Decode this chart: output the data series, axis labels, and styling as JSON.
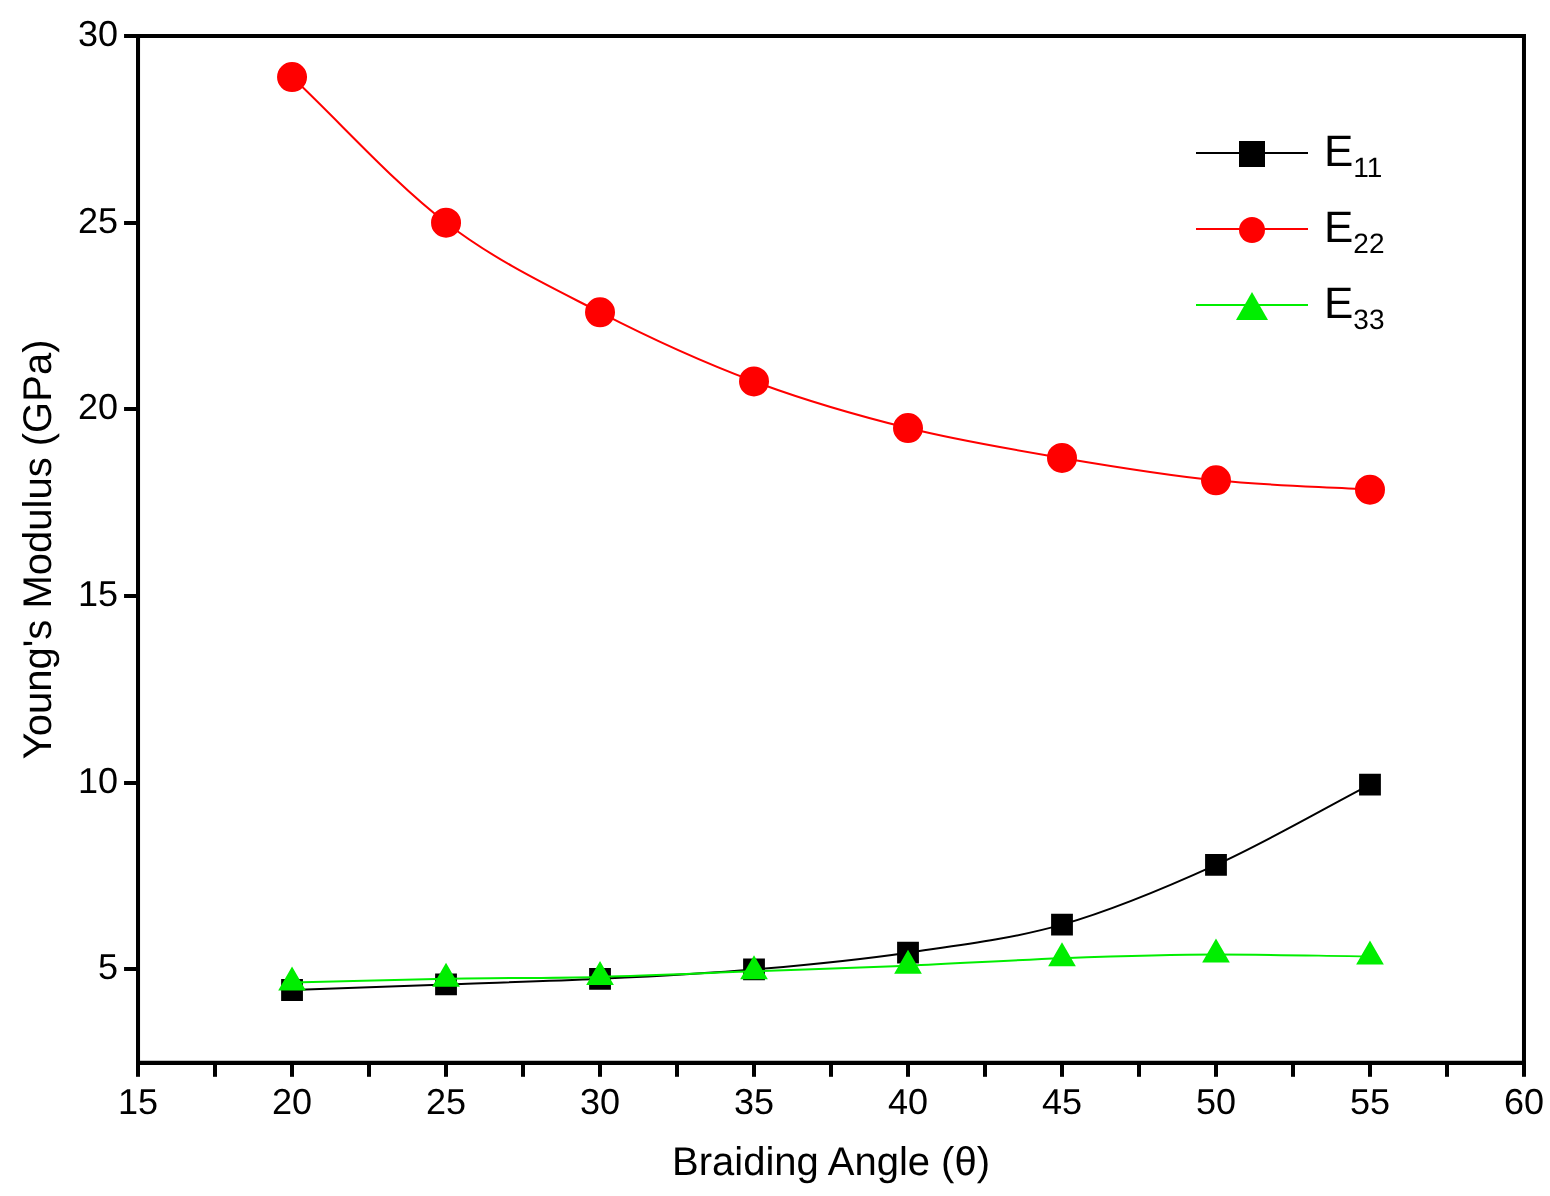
{
  "chart_data": {
    "type": "line",
    "xlabel": "Braiding Angle (θ)",
    "ylabel": "Young's Modulus (GPa)",
    "x": [
      20,
      25,
      30,
      35,
      40,
      45,
      50,
      55
    ],
    "series": [
      {
        "name": "E$_{11}$",
        "color": "#000000",
        "marker": "square",
        "values": [
          4.45,
          4.6,
          4.75,
          5.0,
          5.45,
          6.2,
          7.8,
          9.95
        ]
      },
      {
        "name": "E$_{22}$",
        "color": "#ff0000",
        "marker": "circle",
        "values": [
          28.9,
          25.0,
          22.6,
          20.75,
          19.5,
          18.7,
          18.1,
          17.85
        ]
      },
      {
        "name": "E$_{33}$",
        "color": "#00ee00",
        "marker": "triangle",
        "values": [
          4.65,
          4.75,
          4.8,
          4.95,
          5.1,
          5.3,
          5.4,
          5.35
        ]
      }
    ],
    "xlim": [
      15,
      60
    ],
    "xticks": [
      15,
      {
        "value": 17.5,
        "label": null
      },
      20,
      {
        "value": 22.5,
        "label": null
      },
      25,
      {
        "value": 27.5,
        "label": null
      },
      30,
      {
        "value": 32.5,
        "label": null
      },
      35,
      {
        "value": 37.5,
        "label": null
      },
      40,
      {
        "value": 42.5,
        "label": null
      },
      45,
      {
        "value": 47.5,
        "label": null
      },
      50,
      {
        "value": 52.5,
        "label": null
      },
      55,
      {
        "value": 57.5,
        "label": null
      },
      60
    ],
    "ylim": [
      2.5,
      30
    ],
    "yticks": [
      5,
      10,
      15,
      20,
      25,
      30
    ],
    "grid": false,
    "legend": "top right",
    "line_style": "solid"
  }
}
